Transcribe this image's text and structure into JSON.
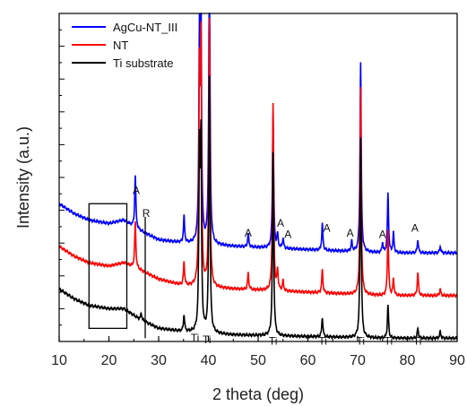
{
  "chart_data": {
    "type": "line",
    "xlabel": "2 theta (deg)",
    "ylabel": "Intensity (a.u.)",
    "xlim": [
      10,
      90
    ],
    "ylim": [
      0,
      100
    ],
    "xticks": [
      10,
      20,
      30,
      40,
      50,
      60,
      70,
      80,
      90
    ],
    "legend": {
      "placement": "top-left",
      "entries": [
        {
          "name": "AgCu-NT_III",
          "color": "#0000ff"
        },
        {
          "name": "NT",
          "color": "#ff0000"
        },
        {
          "name": "Ti substrate",
          "color": "#000000"
        }
      ]
    },
    "series": [
      {
        "name": "AgCu-NT_III",
        "color": "#0000ff",
        "baseline": [
          [
            10,
            42
          ],
          [
            13,
            39
          ],
          [
            16,
            37
          ],
          [
            20,
            36
          ],
          [
            23,
            37
          ],
          [
            26,
            34
          ],
          [
            30,
            31
          ],
          [
            35,
            30
          ],
          [
            45,
            29
          ],
          [
            60,
            28
          ],
          [
            75,
            27
          ],
          [
            90,
            27
          ]
        ],
        "peaks": [
          [
            25.3,
            16
          ],
          [
            35.1,
            8
          ],
          [
            38.2,
            58
          ],
          [
            38.5,
            72
          ],
          [
            40.2,
            96
          ],
          [
            48,
            4
          ],
          [
            53,
            41
          ],
          [
            53.9,
            4
          ],
          [
            55,
            3
          ],
          [
            62.9,
            8
          ],
          [
            68.8,
            3
          ],
          [
            70.6,
            58
          ],
          [
            75,
            3
          ],
          [
            76.1,
            18
          ],
          [
            77.2,
            6
          ],
          [
            82.1,
            4
          ],
          [
            86.6,
            2
          ]
        ]
      },
      {
        "name": "NT",
        "color": "#ff0000",
        "baseline": [
          [
            10,
            29
          ],
          [
            13,
            26
          ],
          [
            16,
            24
          ],
          [
            20,
            23
          ],
          [
            23,
            24
          ],
          [
            26,
            22
          ],
          [
            30,
            19
          ],
          [
            35,
            17
          ],
          [
            45,
            16
          ],
          [
            60,
            15
          ],
          [
            75,
            14
          ],
          [
            90,
            14
          ]
        ],
        "peaks": [
          [
            25.3,
            14
          ],
          [
            35.1,
            7
          ],
          [
            38.2,
            60
          ],
          [
            38.5,
            70
          ],
          [
            40.2,
            81
          ],
          [
            48,
            5
          ],
          [
            53,
            57
          ],
          [
            53.9,
            6
          ],
          [
            55,
            3
          ],
          [
            62.9,
            7
          ],
          [
            70.6,
            63
          ],
          [
            76.1,
            20
          ],
          [
            77.2,
            5
          ],
          [
            82.1,
            7
          ],
          [
            86.6,
            2
          ]
        ]
      },
      {
        "name": "Ti substrate",
        "color": "#000000",
        "baseline": [
          [
            10,
            16
          ],
          [
            13,
            13
          ],
          [
            16,
            11
          ],
          [
            20,
            10
          ],
          [
            23,
            10
          ],
          [
            26,
            7
          ],
          [
            30,
            4
          ],
          [
            35,
            3
          ],
          [
            45,
            2
          ],
          [
            60,
            1.5
          ],
          [
            75,
            1
          ],
          [
            90,
            1
          ]
        ],
        "peaks": [
          [
            26.5,
            2
          ],
          [
            35.1,
            5
          ],
          [
            38.2,
            52
          ],
          [
            38.5,
            55
          ],
          [
            40.2,
            78
          ],
          [
            53,
            56
          ],
          [
            62.9,
            6
          ],
          [
            70.6,
            61
          ],
          [
            76.1,
            10
          ],
          [
            82.1,
            3
          ],
          [
            86.6,
            2
          ]
        ]
      }
    ],
    "annotations": [
      {
        "text": "A",
        "x": 25.5,
        "y": 45
      },
      {
        "text": "R",
        "x": 27.5,
        "y": 38
      },
      {
        "text": "A",
        "x": 48,
        "y": 32
      },
      {
        "text": "A",
        "x": 54.5,
        "y": 35
      },
      {
        "text": "A",
        "x": 56,
        "y": 31.5
      },
      {
        "text": "A",
        "x": 63.8,
        "y": 33.5
      },
      {
        "text": "A",
        "x": 68.5,
        "y": 32
      },
      {
        "text": "A",
        "x": 75,
        "y": 31.5
      },
      {
        "text": "A",
        "x": 81.5,
        "y": 33.5
      },
      {
        "text": "Ti",
        "x": 37.3,
        "y": 0
      },
      {
        "text": "Ti",
        "x": 39.7,
        "y": -0.5
      },
      {
        "text": "Ti",
        "x": 53,
        "y": -1
      },
      {
        "text": "Ti",
        "x": 63,
        "y": -1
      },
      {
        "text": "Ti",
        "x": 70.6,
        "y": -1
      },
      {
        "text": "Ti",
        "x": 76.2,
        "y": -1
      },
      {
        "text": "Ti",
        "x": 82,
        "y": -1
      }
    ],
    "highlight_box": {
      "x0": 16,
      "x1": 23.6,
      "y0": 4,
      "y1": 42
    },
    "marker_line": {
      "x": 27.3,
      "y0": 1,
      "y1": 38
    }
  }
}
